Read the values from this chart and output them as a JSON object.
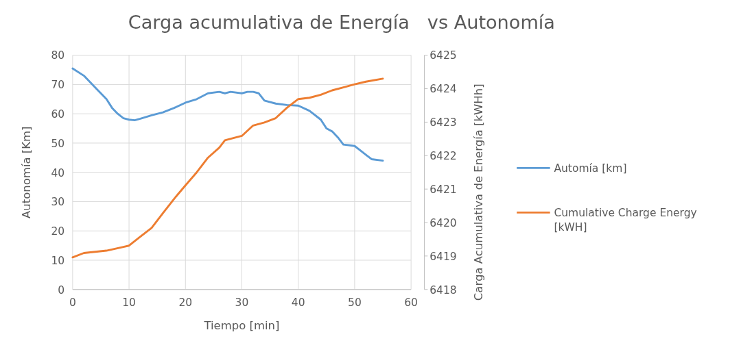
{
  "chart_data": {
    "type": "line",
    "title": "Carga acumulativa de Energía   vs Autonomía",
    "xlabel": "Tiempo [min]",
    "ylabel": "Autonomía [Km]",
    "y2label": "Carga Acumulativa de Energía [kWHh]",
    "xlim": [
      0,
      60
    ],
    "xticks": [
      0,
      10,
      20,
      30,
      40,
      50,
      60
    ],
    "ylim": [
      0,
      80
    ],
    "yticks": [
      0,
      10,
      20,
      30,
      40,
      50,
      60,
      70,
      80
    ],
    "y2lim": [
      6418,
      6425
    ],
    "y2ticks": [
      6418,
      6419,
      6420,
      6421,
      6422,
      6423,
      6424,
      6425
    ],
    "grid": true,
    "legend": "right",
    "marker": "none",
    "line_style": "solid",
    "series": [
      {
        "name": "Automía [km]",
        "color": "#5b9bd5",
        "x": [
          0,
          2,
          4,
          6,
          7,
          8,
          9,
          10,
          11,
          12,
          14,
          16,
          18,
          20,
          22,
          24,
          26,
          27,
          28,
          30,
          31,
          32,
          33,
          34,
          36,
          38,
          40,
          42,
          44,
          45,
          46,
          47,
          48,
          50,
          51,
          52,
          53,
          55
        ],
        "values": [
          75.5,
          73,
          69,
          65,
          62,
          60,
          58.5,
          58,
          57.8,
          58.3,
          59.5,
          60.5,
          62,
          63.8,
          65,
          67,
          67.5,
          67,
          67.5,
          67,
          67.5,
          67.5,
          67,
          64.5,
          63.5,
          63,
          62.8,
          61,
          58,
          55,
          54,
          52,
          49.5,
          49,
          47.5,
          46,
          44.5,
          44
        ]
      },
      {
        "name": "Cumulative Charge Energy [kWH]",
        "color": "#ed7d31",
        "axis": "y2",
        "x": [
          0,
          2,
          6,
          9,
          10,
          12,
          14,
          16,
          18,
          20,
          22,
          24,
          26,
          27,
          30,
          32,
          34,
          36,
          38,
          40,
          42,
          44,
          46,
          48,
          50,
          52,
          55
        ],
        "values": [
          6418.96,
          6419.09,
          6419.16,
          6419.27,
          6419.31,
          6419.58,
          6419.84,
          6420.28,
          6420.71,
          6421.11,
          6421.5,
          6421.94,
          6422.24,
          6422.46,
          6422.59,
          6422.9,
          6422.99,
          6423.12,
          6423.43,
          6423.69,
          6423.73,
          6423.82,
          6423.95,
          6424.04,
          6424.13,
          6424.21,
          6424.3
        ]
      }
    ]
  }
}
